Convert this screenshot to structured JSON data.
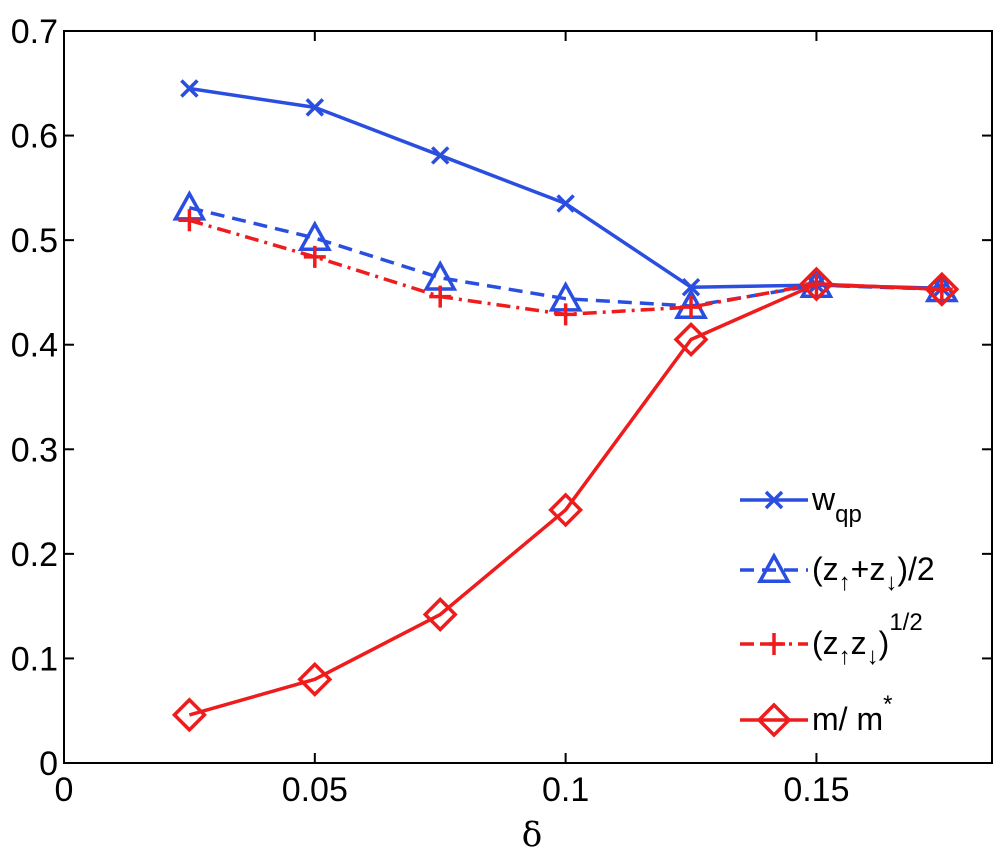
{
  "chart_data": {
    "type": "line",
    "xlabel": "δ",
    "ylabel": "",
    "xlim": [
      0,
      0.185
    ],
    "ylim": [
      0,
      0.7
    ],
    "xticks": [
      "0",
      "0.05",
      "0.1",
      "0.15"
    ],
    "xtick_values": [
      0,
      0.05,
      0.1,
      0.15
    ],
    "yticks": [
      "0",
      "0.1",
      "0.2",
      "0.3",
      "0.4",
      "0.5",
      "0.6",
      "0.7"
    ],
    "ytick_values": [
      0,
      0.1,
      0.2,
      0.3,
      0.4,
      0.5,
      0.6,
      0.7
    ],
    "grid": false,
    "legend_position": "bottom-right",
    "x": [
      0.025,
      0.05,
      0.075,
      0.1,
      0.125,
      0.15,
      0.175
    ],
    "series": [
      {
        "name": "w_qp",
        "legend": {
          "main": "w",
          "sub": "qp"
        },
        "color": "#2a4ee0",
        "linestyle": "solid",
        "marker": "x",
        "values": [
          0.645,
          0.627,
          0.581,
          0.535,
          0.455,
          0.457,
          0.454
        ]
      },
      {
        "name": "(z↑+z↓)/2",
        "legend": {
          "p1": "(z",
          "s1": "↑",
          "p2": "+z",
          "s2": "↓",
          "p3": ")/2"
        },
        "color": "#2a4ee0",
        "linestyle": "dashed",
        "marker": "triangle",
        "values": [
          0.531,
          0.502,
          0.464,
          0.444,
          0.437,
          0.457,
          0.453
        ]
      },
      {
        "name": "(z↑z↓)^1/2",
        "legend": {
          "p1": "(z",
          "s1": "↑",
          "p2": "z",
          "s2": "↓",
          "p3": ")",
          "sup": "1/2"
        },
        "color": "#ee1c1c",
        "linestyle": "dashdot",
        "marker": "plus",
        "values": [
          0.519,
          0.484,
          0.446,
          0.429,
          0.436,
          0.458,
          0.453
        ]
      },
      {
        "name": "m/ m*",
        "legend": {
          "main": "m/ m",
          "sup": "*"
        },
        "color": "#ee1c1c",
        "linestyle": "solid",
        "marker": "diamond",
        "values": [
          0.046,
          0.08,
          0.142,
          0.242,
          0.405,
          0.458,
          0.453
        ]
      }
    ]
  }
}
